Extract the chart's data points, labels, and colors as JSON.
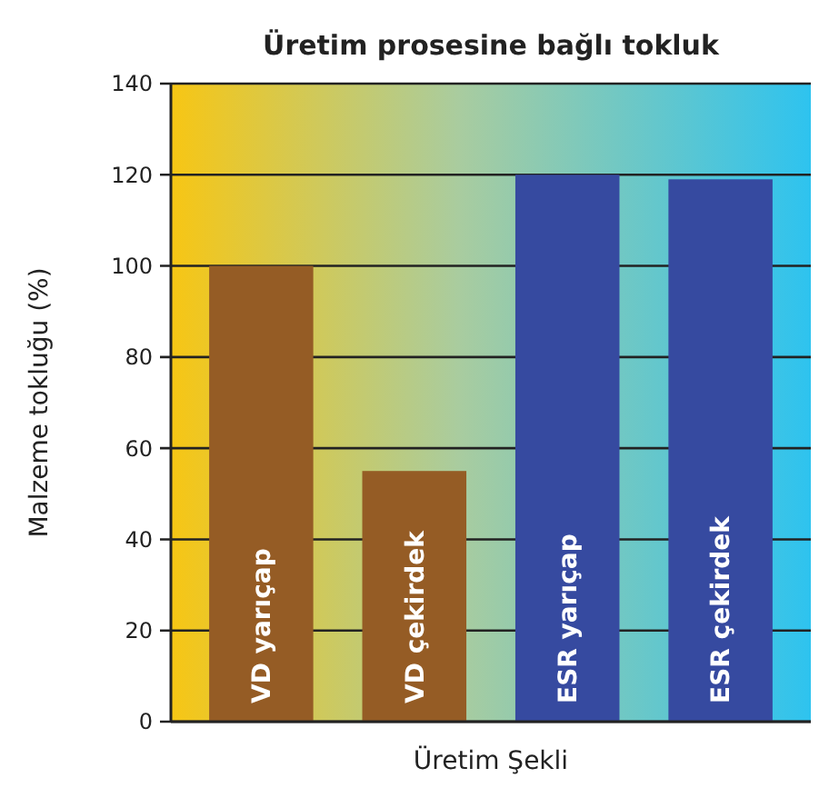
{
  "chart_data": {
    "type": "bar",
    "title": "Üretim prosesine bağlı tokluk",
    "xlabel": "Üretim Şekli",
    "ylabel": "Malzeme tokluğu (%)",
    "categories": [
      "VD yarıçap",
      "VD çekirdek",
      "ESR yarıçap",
      "ESR çekirdek"
    ],
    "values": [
      100,
      55,
      120,
      119
    ],
    "colors": [
      "#955c25",
      "#955c25",
      "#364aa0",
      "#364aa0"
    ],
    "ylim": [
      0,
      140
    ],
    "yticks": [
      0,
      20,
      40,
      60,
      80,
      100,
      120,
      140
    ],
    "grid": "y"
  }
}
